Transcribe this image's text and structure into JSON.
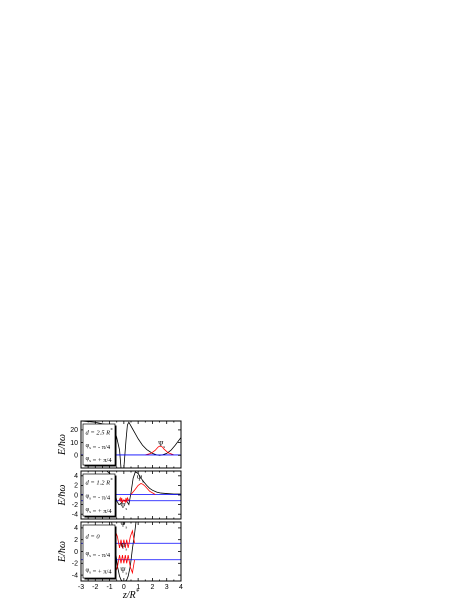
{
  "chart_data": [
    {
      "type": "line",
      "ylabel": "E/ħω",
      "xlim": [
        -3,
        4
      ],
      "ylim": [
        -10,
        27
      ],
      "yticks": [
        0,
        10,
        20
      ],
      "xticks": [
        -3,
        -2,
        -1,
        0,
        1,
        2,
        3,
        4
      ],
      "legend_lines": [
        "d = 2.5 R*",
        "φ_s = - π/4",
        "φ_s = + π/4"
      ],
      "annotations": [
        {
          "text": "Ψ_s",
          "x": 2.65,
          "y": 7.5
        }
      ],
      "series": [
        {
          "color": "#000000",
          "x": [
            -3,
            -2,
            -1.2,
            -0.7,
            -0.5,
            -0.3,
            -0.2,
            0.0,
            0.15,
            0.25,
            0.35,
            0.45,
            0.6,
            0.8,
            1.0,
            1.3,
            1.6,
            2.0,
            2.3,
            2.5,
            2.7,
            3.0,
            3.3,
            3.6,
            4.0
          ],
          "y": [
            27,
            26,
            24,
            22,
            14,
            4,
            -10,
            -10,
            12,
            24,
            26,
            24,
            21,
            17,
            13,
            8,
            4.5,
            1.5,
            0.3,
            0,
            0.3,
            1.5,
            4,
            8,
            14
          ]
        },
        {
          "color": "#ff0000",
          "x": [
            1.5,
            1.9,
            2.2,
            2.4,
            2.5,
            2.6,
            2.7,
            2.8,
            3.1,
            3.5
          ],
          "y": [
            0.3,
            1.5,
            4,
            6.5,
            7.2,
            7.0,
            6.5,
            5,
            2,
            0.3
          ]
        },
        {
          "color": "#0000ff",
          "x": [
            -3,
            4
          ],
          "y": [
            0.3,
            0.3
          ]
        }
      ]
    },
    {
      "type": "line",
      "ylabel": "E/ħω",
      "xlim": [
        -3,
        4
      ],
      "ylim": [
        -5,
        5
      ],
      "yticks": [
        -4,
        -2,
        0,
        2,
        4
      ],
      "xticks": [
        -3,
        -2,
        -1,
        0,
        1,
        2,
        3,
        4
      ],
      "legend_lines": [
        "d = 1.2 R*",
        "φ_s = - π/4",
        "φ_s = + π/4"
      ],
      "annotations": [
        {
          "text": "Ψ_s",
          "x": 1.15,
          "y": 3.0
        },
        {
          "text": "Ψ_s",
          "x": 0.0,
          "y": -2.7
        }
      ],
      "series": [
        {
          "color": "#000000",
          "x": [
            -3,
            -2,
            -1.2,
            -0.8,
            -0.5,
            -0.35,
            -0.2,
            -0.05,
            0.05,
            0.2,
            0.35,
            0.5,
            0.65,
            0.8,
            1.0,
            1.2,
            1.4,
            1.6,
            1.8,
            2.0,
            2.3,
            2.6,
            3.0,
            3.5,
            4.0
          ],
          "y": [
            5,
            5,
            5,
            4,
            -1.2,
            -2.0,
            -1.8,
            -1.2,
            -1.1,
            -1.3,
            -2.0,
            0.5,
            3.5,
            4.8,
            4.5,
            3.5,
            2.7,
            2.0,
            1.4,
            1.0,
            0.6,
            0.4,
            0.3,
            0.2,
            0.2
          ]
        },
        {
          "color": "#0000ff",
          "x": [
            -3,
            4
          ],
          "y": [
            0.1,
            0.1
          ]
        },
        {
          "color": "#0000ff",
          "x": [
            -3,
            4
          ],
          "y": [
            -1.2,
            -1.2
          ]
        },
        {
          "color": "#ff0000",
          "x": [
            0.5,
            0.8,
            1.0,
            1.2,
            1.35,
            1.5,
            1.8,
            2.2
          ],
          "y": [
            0.1,
            1.2,
            2.0,
            2.4,
            2.2,
            1.8,
            0.8,
            0.1
          ]
        },
        {
          "color": "#ff0000",
          "x": [
            -0.35,
            -0.25,
            -0.2,
            -0.15,
            -0.1,
            0.0,
            0.1,
            0.15,
            0.2,
            0.25,
            0.35
          ],
          "y": [
            -1.2,
            -0.6,
            -1.5,
            -0.6,
            -1.5,
            -1.0,
            -1.5,
            -0.6,
            -1.5,
            -0.6,
            -1.2
          ]
        }
      ]
    },
    {
      "type": "line",
      "xlabel": "z/R*",
      "ylabel": "E/ħω",
      "xlim": [
        -3,
        4
      ],
      "ylim": [
        -5,
        5
      ],
      "yticks": [
        -4,
        -2,
        0,
        2,
        4
      ],
      "xticks": [
        -3,
        -2,
        -1,
        0,
        1,
        2,
        3,
        4
      ],
      "xticklabels": [
        "-3",
        "-2",
        "-1",
        "0",
        "1",
        "2",
        "3",
        "4"
      ],
      "legend_lines": [
        "d = 0",
        "φ_s = - π/4",
        "φ_s = + π/4"
      ],
      "annotations": [
        {
          "text": "Ψ_s",
          "x": 0.0,
          "y": 4.2
        },
        {
          "text": "Ψ_s",
          "x": 0.0,
          "y": 0.5
        },
        {
          "text": "Ψ_s",
          "x": 0.0,
          "y": -3.6
        }
      ],
      "series": [
        {
          "color": "#000000",
          "x": [
            -0.85,
            -0.75,
            -0.6,
            -0.45,
            -0.3,
            -0.2,
            -0.1,
            0.0,
            0.1,
            0.2,
            0.3,
            0.45,
            0.6,
            0.75,
            0.85
          ],
          "y": [
            5,
            3,
            0.5,
            -2.5,
            -4.2,
            -4.8,
            -5,
            -5,
            -5,
            -4.8,
            -4.2,
            -2.5,
            0.5,
            3,
            5
          ]
        },
        {
          "color": "#0000ff",
          "x": [
            -3,
            4
          ],
          "y": [
            1.4,
            1.4
          ]
        },
        {
          "color": "#0000ff",
          "x": [
            -3,
            4
          ],
          "y": [
            -1.4,
            -1.4
          ]
        },
        {
          "color": "#ff0000",
          "x": [
            -0.75,
            -0.6,
            -0.45,
            -0.3,
            -0.2,
            -0.1,
            0.0,
            0.1,
            0.2,
            0.3,
            0.45,
            0.6,
            0.75
          ],
          "y": [
            1.4,
            3.5,
            2.5,
            0.6,
            2.0,
            0.6,
            2.0,
            0.6,
            2.0,
            0.6,
            2.5,
            3.5,
            1.4
          ]
        },
        {
          "color": "#ff0000",
          "x": [
            -0.75,
            -0.6,
            -0.45,
            -0.3,
            -0.2,
            -0.1,
            0.0,
            0.1,
            0.2,
            0.3,
            0.45,
            0.6,
            0.75
          ],
          "y": [
            -1.4,
            -3.6,
            -2.6,
            -0.6,
            -2.0,
            -0.6,
            -2.0,
            -0.6,
            -2.0,
            -0.6,
            -2.6,
            -3.6,
            -1.4
          ]
        }
      ]
    }
  ]
}
